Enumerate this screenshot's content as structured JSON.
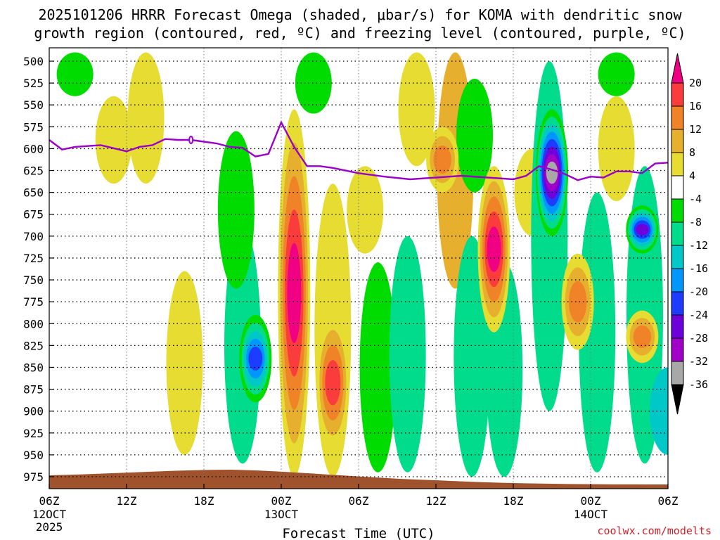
{
  "title": {
    "line1": "2025101206 HRRR Forecast Omega (shaded, μbar/s) for KOMA with dendritic snow",
    "line2": "growth region (contoured, red, ºC) and freezing level (contoured, purple, ºC)"
  },
  "credit": "coolwx.com/modelts",
  "chart_data": {
    "type": "heatmap",
    "title": "2025101206 HRRR Forecast Omega (shaded, μbar/s) for KOMA with dendritic snow growth region (contoured, red, ºC) and freezing level (contoured, purple, ºC)",
    "xlabel": "Forecast Time (UTC)",
    "ylabel": "Pressure (hPa)",
    "x_range_hours": [
      0,
      48
    ],
    "y_range_hPa": [
      490,
      990
    ],
    "x_ticks": [
      {
        "hour": 0,
        "label": "06Z",
        "sub1": "12OCT",
        "sub2": "2025"
      },
      {
        "hour": 6,
        "label": "12Z",
        "sub1": "",
        "sub2": ""
      },
      {
        "hour": 12,
        "label": "18Z",
        "sub1": "",
        "sub2": ""
      },
      {
        "hour": 18,
        "label": "00Z",
        "sub1": "13OCT",
        "sub2": ""
      },
      {
        "hour": 24,
        "label": "06Z",
        "sub1": "",
        "sub2": ""
      },
      {
        "hour": 30,
        "label": "12Z",
        "sub1": "",
        "sub2": ""
      },
      {
        "hour": 36,
        "label": "18Z",
        "sub1": "",
        "sub2": ""
      },
      {
        "hour": 42,
        "label": "00Z",
        "sub1": "14OCT",
        "sub2": ""
      },
      {
        "hour": 48,
        "label": "06Z",
        "sub1": "",
        "sub2": ""
      }
    ],
    "y_ticks": [
      500,
      525,
      550,
      575,
      600,
      625,
      650,
      675,
      700,
      725,
      750,
      775,
      800,
      825,
      850,
      875,
      900,
      925,
      950,
      975
    ],
    "colorbar": {
      "labels": [
        "20",
        "16",
        "12",
        "8",
        "4",
        "-4",
        "-8",
        "-12",
        "-16",
        "-20",
        "-24",
        "-28",
        "-32",
        "-36"
      ],
      "levels": [
        -36,
        -32,
        -28,
        -24,
        -20,
        -16,
        -12,
        -8,
        -4,
        4,
        8,
        12,
        16,
        20
      ],
      "colors": [
        "#000000",
        "#a8a8a8",
        "#a000c8",
        "#6e00dc",
        "#1e3cff",
        "#0096ff",
        "#00c8c8",
        "#00dc8c",
        "#00dc00",
        "#ffffff",
        "#e6dc32",
        "#e6af2d",
        "#f08228",
        "#fa3c3c",
        "#f00082"
      ]
    },
    "freezing_level": {
      "hours": [
        0,
        1,
        2,
        4,
        6,
        7,
        8,
        9,
        10,
        11,
        12,
        13,
        14,
        15,
        16,
        17,
        18,
        19,
        20,
        21,
        22,
        24,
        26,
        28,
        30,
        32,
        34,
        36,
        37,
        38,
        39,
        40,
        41,
        42,
        43,
        44,
        45,
        46,
        47,
        48
      ],
      "pressure_hPa": [
        590,
        601,
        598,
        596,
        603,
        598,
        596,
        589,
        590,
        590,
        592,
        594,
        598,
        599,
        609,
        606,
        570,
        598,
        620,
        620,
        622,
        628,
        632,
        635,
        633,
        631,
        633,
        635,
        631,
        620,
        624,
        629,
        636,
        632,
        633,
        626,
        626,
        628,
        617,
        616
      ]
    },
    "omega_features": [
      {
        "hour": 19.0,
        "p_top": 555,
        "p_bot": 975,
        "peak": 22,
        "note": "strong rising motion (negative omega convention per colorbar) column near 00Z 13OCT"
      },
      {
        "hour": 34.5,
        "p_top": 620,
        "p_bot": 810,
        "peak": 22
      },
      {
        "hour": 30.5,
        "p_top": 575,
        "p_bot": 650,
        "peak": 16
      },
      {
        "hour": 39.0,
        "p_top": 555,
        "p_bot": 700,
        "peak": -36
      },
      {
        "hour": 16.0,
        "p_top": 790,
        "p_bot": 890,
        "peak": -24
      },
      {
        "hour": 22.0,
        "p_top": 790,
        "p_bot": 945,
        "peak": 18
      },
      {
        "hour": 41.0,
        "p_top": 720,
        "p_bot": 830,
        "peak": 14
      },
      {
        "hour": 46.0,
        "p_top": 665,
        "p_bot": 720,
        "peak": -28
      },
      {
        "hour": 46.0,
        "p_top": 785,
        "p_bot": 845,
        "peak": 16
      }
    ]
  }
}
